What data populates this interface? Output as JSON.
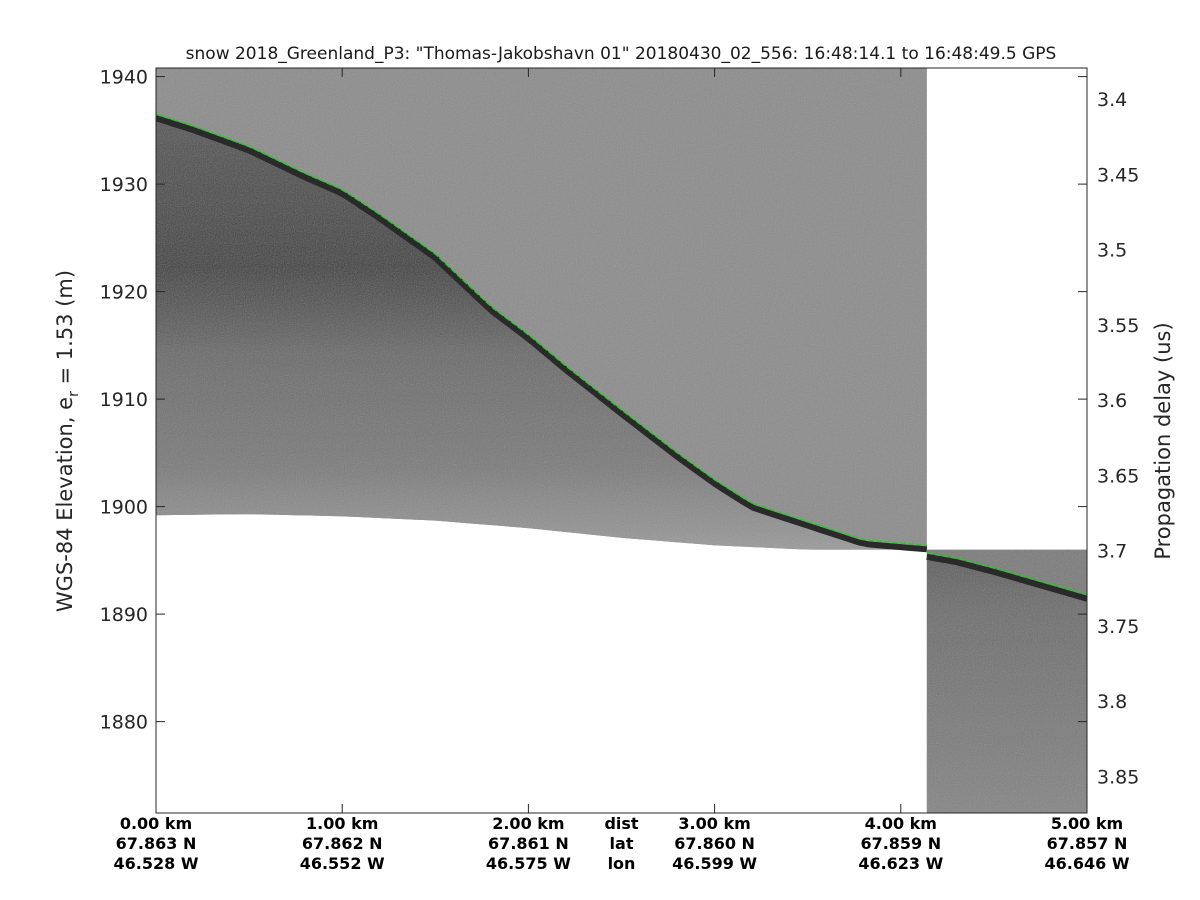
{
  "chart_data": {
    "type": "heatmap",
    "title": "snow 2018_Greenland_P3: \"Thomas-Jakobshavn 01\"  20180430_02_556: 16:48:14.1 to 16:48:49.5 GPS",
    "ylabel_left_prefix": "WGS-84 Elevation, e",
    "ylabel_left_sub": "r",
    "ylabel_left_suffix": " = 1.53 (m)",
    "ylabel_right": "Propagation delay (us)",
    "xlim": [
      0,
      5.0
    ],
    "ylim": [
      1871.5,
      1940.8
    ],
    "y_ticks": [
      1940,
      1930,
      1920,
      1910,
      1900,
      1890,
      1880
    ],
    "y2_ticks": [
      {
        "value": 3.4,
        "label": "3.4"
      },
      {
        "value": 3.45,
        "label": "3.45"
      },
      {
        "value": 3.5,
        "label": "3.5"
      },
      {
        "value": 3.55,
        "label": "3.55"
      },
      {
        "value": 3.6,
        "label": "3.6"
      },
      {
        "value": 3.65,
        "label": "3.65"
      },
      {
        "value": 3.7,
        "label": "3.7"
      },
      {
        "value": 3.75,
        "label": "3.75"
      },
      {
        "value": 3.8,
        "label": "3.8"
      },
      {
        "value": 3.85,
        "label": "3.85"
      }
    ],
    "y2_reference": {
      "elevation_at_3_7us": 1895.9,
      "elevation_per_0_05us": -7.0
    },
    "x_ticks": [
      {
        "value": 0.0,
        "dist": "0.00 km",
        "lat": "67.863 N",
        "lon": "46.528 W"
      },
      {
        "value": 1.0,
        "dist": "1.00 km",
        "lat": "67.862 N",
        "lon": "46.552 W"
      },
      {
        "value": 2.0,
        "dist": "2.00 km",
        "lat": "67.861 N",
        "lon": "46.575 W"
      },
      {
        "value": 3.0,
        "dist": "3.00 km",
        "lat": "67.860 N",
        "lon": "46.599 W"
      },
      {
        "value": 4.0,
        "dist": "4.00 km",
        "lat": "67.859 N",
        "lon": "46.623 W"
      },
      {
        "value": 5.0,
        "dist": "5.00 km",
        "lat": "67.857 N",
        "lon": "46.646 W"
      }
    ],
    "x_row_labels": {
      "dist": "dist",
      "lat": "lat",
      "lon": "lon",
      "at_km": 2.5
    },
    "segments": [
      {
        "x_range": [
          0,
          4.14
        ],
        "top_elevation": 1940.8,
        "surface": {
          "x": [
            0,
            0.2,
            0.5,
            0.8,
            1.0,
            1.2,
            1.5,
            1.8,
            2.0,
            2.2,
            2.5,
            2.8,
            3.0,
            3.2,
            3.5,
            3.8,
            4.0,
            4.14
          ],
          "y": [
            1936.5,
            1935.4,
            1933.5,
            1931.0,
            1929.5,
            1927.2,
            1923.5,
            1918.6,
            1916.0,
            1913.1,
            1909.0,
            1905.0,
            1902.5,
            1900.3,
            1898.6,
            1896.9,
            1896.6,
            1896.4
          ]
        },
        "bottom": {
          "x": [
            0,
            0.5,
            1.0,
            1.5,
            2.0,
            2.5,
            3.0,
            3.5,
            4.0,
            4.14
          ],
          "y": [
            1899.2,
            1899.3,
            1899.1,
            1898.7,
            1898.0,
            1897.1,
            1896.4,
            1896.0,
            1896.0,
            1896.0
          ]
        }
      },
      {
        "x_range": [
          4.14,
          5.0
        ],
        "top_elevation": 1896.0,
        "surface": {
          "x": [
            4.14,
            4.3,
            4.5,
            4.7,
            4.9,
            5.0
          ],
          "y": [
            1895.7,
            1895.2,
            1894.3,
            1893.3,
            1892.3,
            1891.8
          ]
        },
        "bottom": {
          "x": [
            4.14,
            5.0
          ],
          "y": [
            1871.5,
            1871.5
          ]
        }
      }
    ],
    "colormap": "gray",
    "surface_color": "#20d020",
    "grid": false,
    "legend": "none"
  }
}
